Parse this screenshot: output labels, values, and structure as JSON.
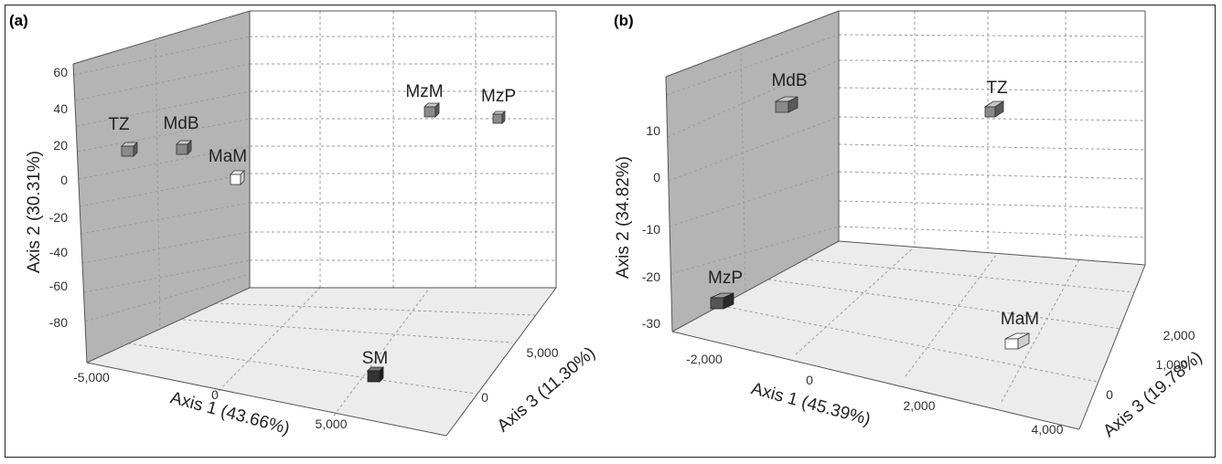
{
  "chart_data": [
    {
      "type": "scatter",
      "panel": "(a)",
      "xlabel": "Axis 1 (43.66%)",
      "ylabel": "Axis 2 (30.31%)",
      "zlabel": "Axis 3 (11.30%)",
      "yticks": [
        "60",
        "40",
        "20",
        "0",
        "-20",
        "-40",
        "-60",
        "-80"
      ],
      "xticks": [
        "-5,000",
        "0",
        "5,000"
      ],
      "zticks": [
        "0",
        "5,000"
      ],
      "grid": true,
      "points": [
        {
          "label": "TZ",
          "color": "#8a8a8a"
        },
        {
          "label": "MdB",
          "color": "#8a8a8a"
        },
        {
          "label": "MaM",
          "color": "#ffffff"
        },
        {
          "label": "MzM",
          "color": "#8a8a8a"
        },
        {
          "label": "MzP",
          "color": "#8a8a8a"
        },
        {
          "label": "SM",
          "color": "#333333"
        }
      ]
    },
    {
      "type": "scatter",
      "panel": "(b)",
      "xlabel": "Axis 1 (45.39%)",
      "ylabel": "Axis 2 (34.82%)",
      "zlabel": "Axis 3 (19.78%)",
      "yticks": [
        "10",
        "0",
        "-10",
        "-20",
        "-30"
      ],
      "xticks": [
        "-2,000",
        "0",
        "2,000",
        "4,000"
      ],
      "zticks": [
        "0",
        "1,000",
        "2,000"
      ],
      "grid": true,
      "points": [
        {
          "label": "MdB",
          "color": "#8a8a8a"
        },
        {
          "label": "TZ",
          "color": "#8a8a8a"
        },
        {
          "label": "MzP",
          "color": "#555555"
        },
        {
          "label": "MaM",
          "color": "#ffffff"
        }
      ]
    }
  ]
}
